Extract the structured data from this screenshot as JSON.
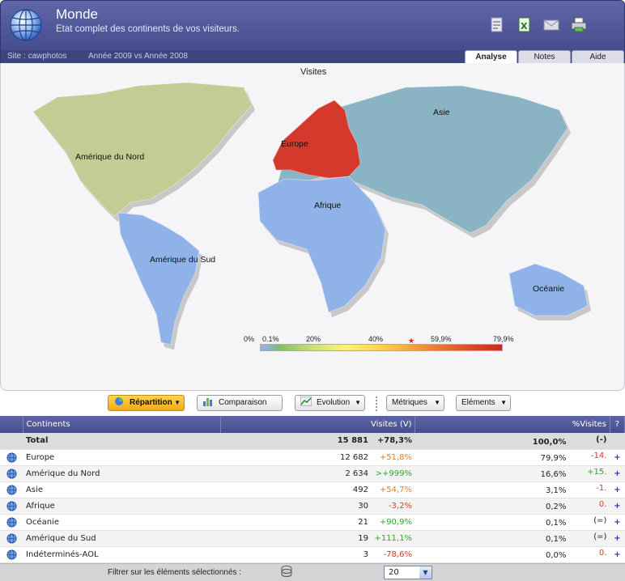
{
  "header": {
    "title": "Monde",
    "subtitle": "Etat complet des continents de vos visiteurs.",
    "site_label": "Site : cawphotos",
    "period_label": "Année 2009 vs Année 2008",
    "tool_icons": [
      "pdf-export-icon",
      "excel-export-icon",
      "email-icon",
      "print-icon"
    ],
    "tabs": [
      {
        "label": "Analyse",
        "active": true
      },
      {
        "label": "Notes",
        "active": false
      },
      {
        "label": "Aide",
        "active": false
      }
    ]
  },
  "map": {
    "title": "Visites",
    "continents": [
      {
        "label": "Amérique du Nord",
        "color": "#c2cc95"
      },
      {
        "label": "Europe",
        "color": "#d5392b"
      },
      {
        "label": "Asie",
        "color": "#8ab3c4"
      },
      {
        "label": "Afrique",
        "color": "#8fb3e8"
      },
      {
        "label": "Amérique du Sud",
        "color": "#8fb3e8"
      },
      {
        "label": "Océanie",
        "color": "#8fb3e8"
      }
    ],
    "legend": {
      "min": "0%",
      "t1": "0.1%",
      "t2": "20%",
      "t3": "40%",
      "t4": "59,9%",
      "max": "79,9%"
    }
  },
  "toolbar": {
    "repartition": "Répartition",
    "comparaison": "Comparaison",
    "evolution": "Evolution",
    "metriques": "Métriques",
    "elements": "Eléments"
  },
  "table": {
    "headers": {
      "name": "Continents",
      "visits": "Visites (V)",
      "pct": "%Visites",
      "help": "?"
    },
    "total": {
      "name": "Total",
      "visits": "15 881",
      "visits_evo": "+78,3%",
      "pct": "100,0%",
      "pct_evo": "(-)"
    },
    "rows": [
      {
        "name": "Europe",
        "visits": "12 682",
        "visits_evo": "+51,8%",
        "visits_evo_class": "warn",
        "pct": "79,9%",
        "pct_evo": "-14.",
        "pct_evo_class": "neg"
      },
      {
        "name": "Amérique du Nord",
        "visits": "2 634",
        "visits_evo": ">+999%",
        "visits_evo_class": "pos",
        "pct": "16,6%",
        "pct_evo": "+15.",
        "pct_evo_class": "pos"
      },
      {
        "name": "Asie",
        "visits": "492",
        "visits_evo": "+54,7%",
        "visits_evo_class": "warn",
        "pct": "3,1%",
        "pct_evo": "-1.",
        "pct_evo_class": "neg"
      },
      {
        "name": "Afrique",
        "visits": "30",
        "visits_evo": "-3,2%",
        "visits_evo_class": "neg",
        "pct": "0,2%",
        "pct_evo": "0.",
        "pct_evo_class": "neg"
      },
      {
        "name": "Océanie",
        "visits": "21",
        "visits_evo": "+90,9%",
        "visits_evo_class": "pos",
        "pct": "0,1%",
        "pct_evo": "(=)",
        "pct_evo_class": "neutral"
      },
      {
        "name": "Amérique du Sud",
        "visits": "19",
        "visits_evo": "+111,1%",
        "visits_evo_class": "pos",
        "pct": "0,1%",
        "pct_evo": "(=)",
        "pct_evo_class": "neutral"
      },
      {
        "name": "Indéterminés-AOL",
        "visits": "3",
        "visits_evo": "-78,6%",
        "visits_evo_class": "neg",
        "pct": "0,0%",
        "pct_evo": "0.",
        "pct_evo_class": "neg"
      }
    ],
    "expand_symbol": "+"
  },
  "footer": {
    "filter_label": "Filtrer sur les éléments sélectionnés :",
    "page_size": "20"
  }
}
